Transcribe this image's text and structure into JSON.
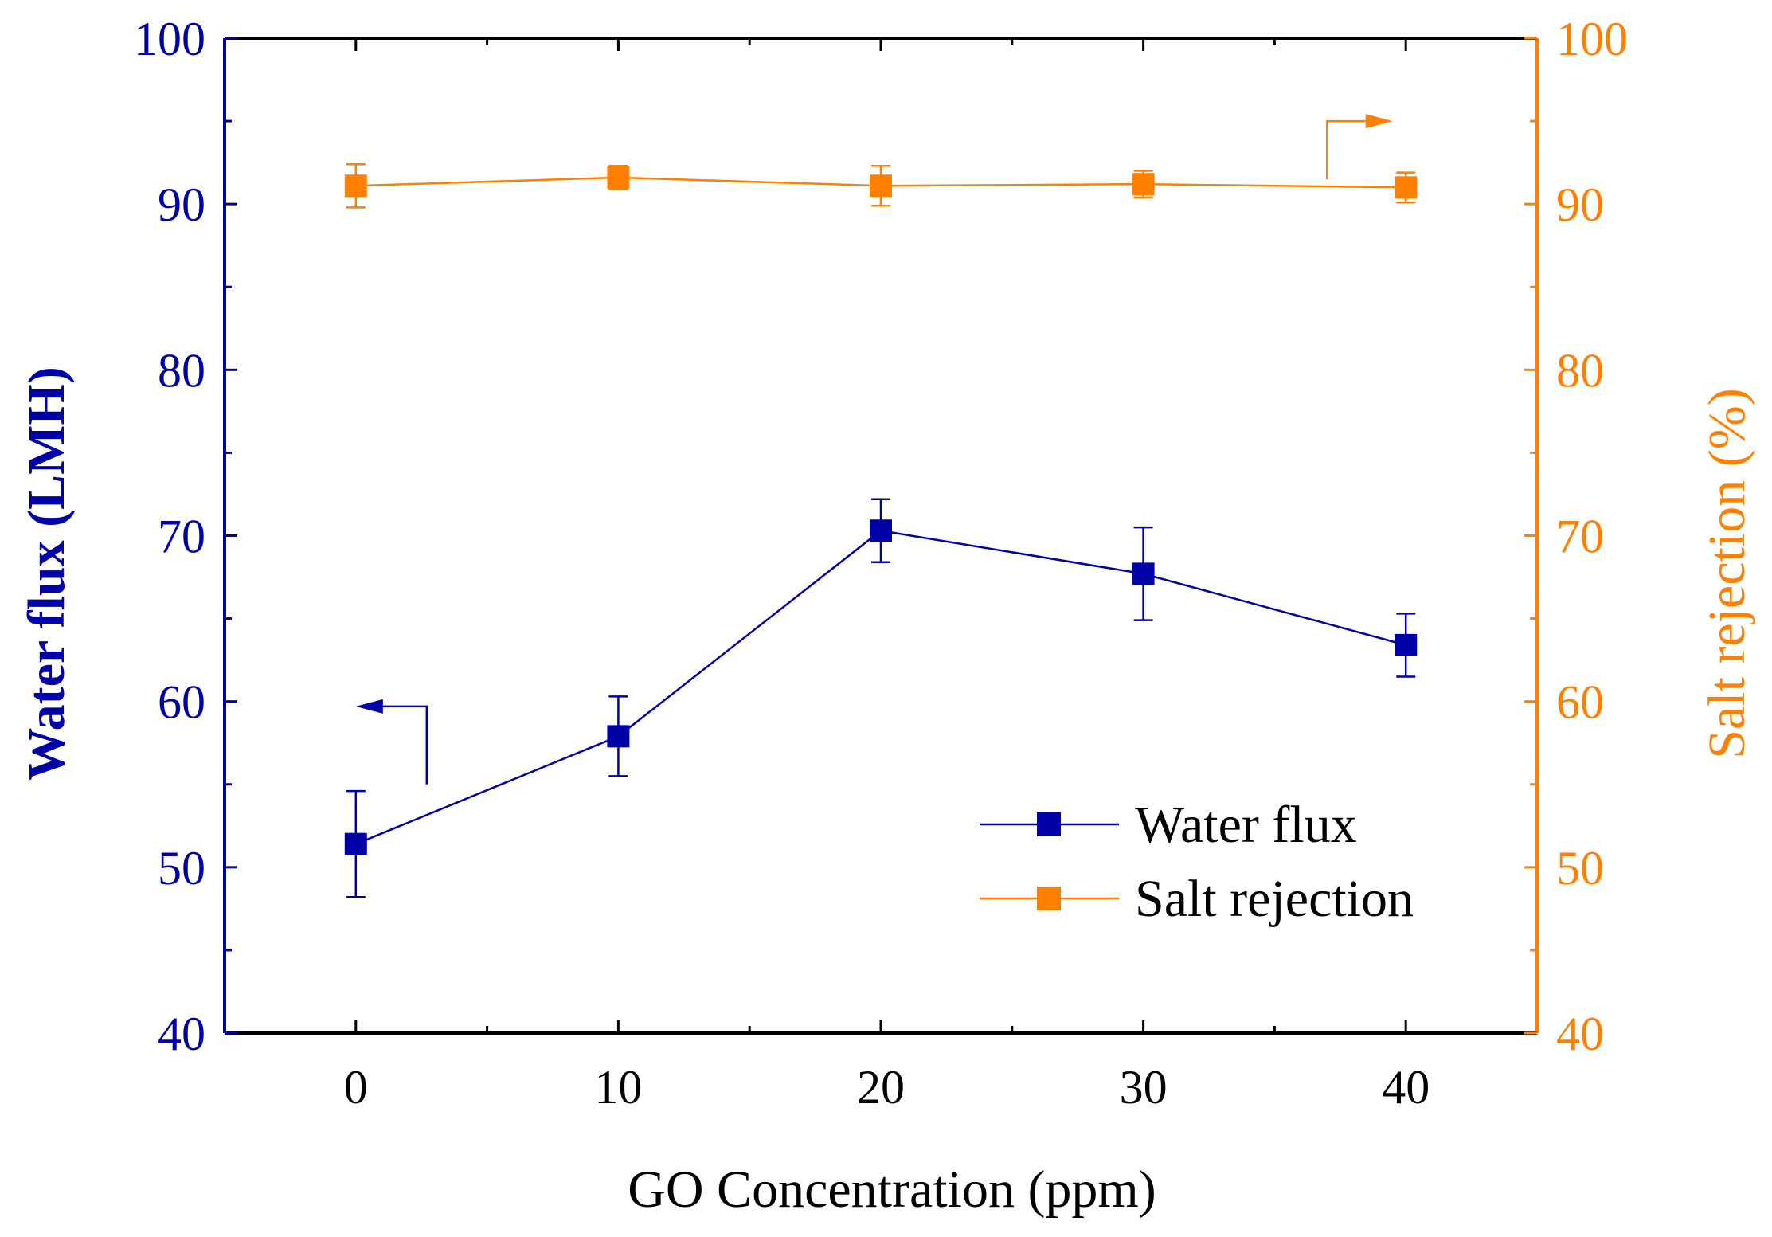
{
  "colors": {
    "water_flux": "#0000a8",
    "salt_rejection": "#ff8000",
    "axis": "#000000"
  },
  "chart_data": {
    "type": "line",
    "title": "",
    "xlabel": "GO Concentration (ppm)",
    "ylabel_left": "Water flux (LMH)",
    "ylabel_right": "Salt rejection (%)",
    "xlim": [
      -5,
      45
    ],
    "ylim_left": [
      40,
      100
    ],
    "ylim_right": [
      40,
      100
    ],
    "x_ticks": [
      0,
      10,
      20,
      30,
      40
    ],
    "x_tick_labels": [
      "0",
      "10",
      "20",
      "30",
      "40"
    ],
    "y_ticks_left": [
      40,
      50,
      60,
      70,
      80,
      90,
      100
    ],
    "y_tick_labels_left": [
      "40",
      "50",
      "60",
      "70",
      "80",
      "90",
      "100"
    ],
    "y_ticks_right": [
      40,
      50,
      60,
      70,
      80,
      90,
      100
    ],
    "y_tick_labels_right": [
      "40",
      "50",
      "60",
      "70",
      "80",
      "90",
      "100"
    ],
    "grid": false,
    "legend_position": "bottom-right",
    "x": [
      0,
      10,
      20,
      30,
      40
    ],
    "series": [
      {
        "name": "Water flux",
        "axis": "left",
        "values": [
          51.4,
          57.9,
          70.3,
          67.7,
          63.4
        ],
        "error": [
          3.2,
          2.4,
          1.9,
          2.8,
          1.9
        ]
      },
      {
        "name": "Salt rejection",
        "axis": "right",
        "values": [
          91.1,
          91.6,
          91.1,
          91.2,
          91.0
        ],
        "error": [
          1.3,
          0.7,
          1.2,
          0.8,
          0.9
        ]
      }
    ]
  }
}
